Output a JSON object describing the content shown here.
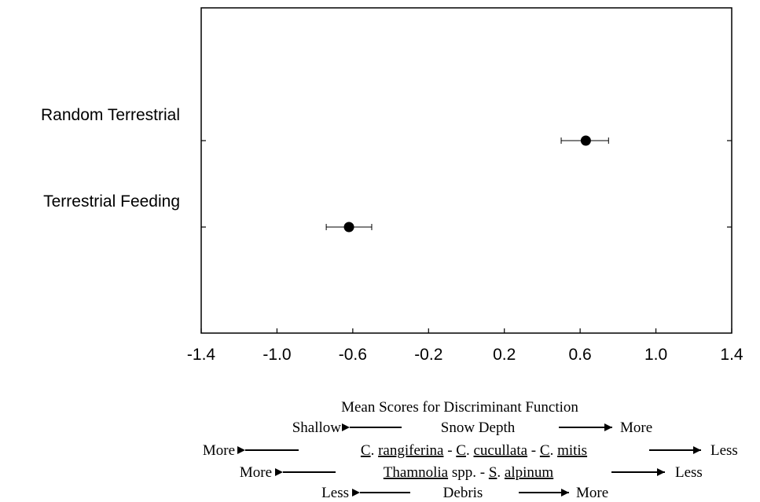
{
  "chart_data": {
    "type": "scatter",
    "title": "",
    "xlabel": "Mean Scores for Discriminant Function",
    "ylabel": "",
    "xlim": [
      -1.4,
      1.4
    ],
    "xticks": [
      "-1.4",
      "-1.0",
      "-0.6",
      "-0.2",
      "0.2",
      "0.6",
      "1.0",
      "1.4"
    ],
    "xtick_values": [
      -1.4,
      -1.0,
      -0.6,
      -0.2,
      0.2,
      0.6,
      1.0,
      1.4
    ],
    "categories": [
      "Random Terrestrial",
      "Terrestrial Feeding"
    ],
    "points": [
      {
        "category": "Random Terrestrial",
        "x": 0.63,
        "err_low": 0.5,
        "err_high": 0.75
      },
      {
        "category": "Terrestrial Feeding",
        "x": -0.62,
        "err_low": -0.74,
        "err_high": -0.5
      }
    ],
    "grid": false,
    "legend_rows": [
      {
        "left": "Shallow",
        "center": "Snow Depth",
        "right": "More"
      },
      {
        "left": "More",
        "center": "C. rangiferina - C. cucullata - C. mitis",
        "right": "Less"
      },
      {
        "left": "More",
        "center": "Thamnolia spp. - S. alpinum",
        "right": "Less"
      },
      {
        "left": "Less",
        "center": "Debris",
        "right": "More"
      }
    ]
  }
}
